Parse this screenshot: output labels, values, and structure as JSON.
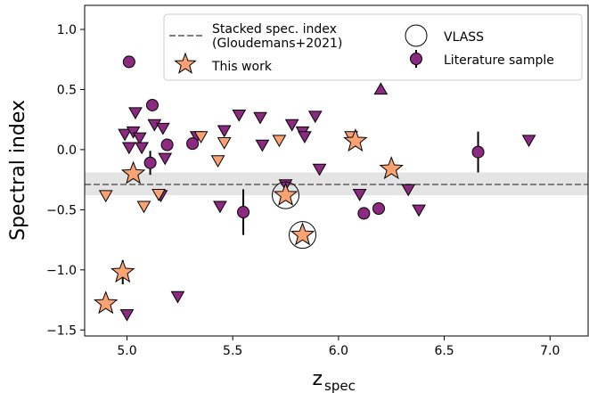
{
  "chart_data": {
    "type": "scatter",
    "xlabel_main": "z",
    "xlabel_sub": "spec",
    "ylabel": "Spectral index",
    "xlim": [
      4.8,
      7.18
    ],
    "ylim": [
      -1.55,
      1.2
    ],
    "x_ticks": [
      "5.0",
      "5.5",
      "6.0",
      "6.5",
      "7.0"
    ],
    "x_tick_values": [
      5.0,
      5.5,
      6.0,
      6.5,
      7.0
    ],
    "y_ticks": [
      "1.0",
      "0.5",
      "0.0",
      "−0.5",
      "−1.0",
      "−1.5"
    ],
    "y_tick_values": [
      1.0,
      0.5,
      0.0,
      -0.5,
      -1.0,
      -1.5
    ],
    "stacked_index": {
      "value": -0.29,
      "band": [
        -0.38,
        -0.19
      ]
    },
    "legend": {
      "stacked_label_line1": "Stacked spec. index",
      "stacked_label_line2": "(Gloudemans+2021)",
      "this_work_label": "This work",
      "vlass_label": "VLASS",
      "literature_label": "Literature sample"
    },
    "colors": {
      "this_work": "#fba273",
      "literature": "#8c2981",
      "band": "#d9d9d9",
      "stacked_line": "#7f7f7f"
    },
    "literature_points": [
      {
        "x": 5.01,
        "y": 0.73
      },
      {
        "x": 5.12,
        "y": 0.37
      },
      {
        "x": 5.11,
        "y": -0.11,
        "yerr": 0.1
      },
      {
        "x": 5.19,
        "y": 0.04
      },
      {
        "x": 5.31,
        "y": 0.05
      },
      {
        "x": 5.55,
        "y": -0.52,
        "yerr": 0.19
      },
      {
        "x": 6.12,
        "y": -0.53
      },
      {
        "x": 6.19,
        "y": -0.49
      },
      {
        "x": 6.66,
        "y": -0.02,
        "yerr": 0.17
      }
    ],
    "literature_upper_limits": [
      {
        "x": 4.99,
        "y": 0.13
      },
      {
        "x": 5.01,
        "y": 0.02
      },
      {
        "x": 5.04,
        "y": 0.31
      },
      {
        "x": 5.03,
        "y": 0.15
      },
      {
        "x": 5.06,
        "y": 0.1
      },
      {
        "x": 5.07,
        "y": 0.02
      },
      {
        "x": 5.13,
        "y": 0.21
      },
      {
        "x": 5.16,
        "y": -0.38
      },
      {
        "x": 5.17,
        "y": 0.18
      },
      {
        "x": 5.18,
        "y": -0.07
      },
      {
        "x": 5.33,
        "y": 0.11
      },
      {
        "x": 5.44,
        "y": -0.47
      },
      {
        "x": 5.46,
        "y": 0.16
      },
      {
        "x": 5.53,
        "y": 0.29
      },
      {
        "x": 5.63,
        "y": 0.27
      },
      {
        "x": 5.64,
        "y": 0.04
      },
      {
        "x": 5.75,
        "y": -0.29
      },
      {
        "x": 5.78,
        "y": 0.21
      },
      {
        "x": 5.83,
        "y": 0.15
      },
      {
        "x": 5.84,
        "y": 0.11
      },
      {
        "x": 5.89,
        "y": 0.28
      },
      {
        "x": 5.91,
        "y": -0.16
      },
      {
        "x": 6.1,
        "y": -0.37
      },
      {
        "x": 6.33,
        "y": -0.33
      },
      {
        "x": 6.38,
        "y": -0.5
      },
      {
        "x": 6.9,
        "y": 0.08
      },
      {
        "x": 5.24,
        "y": -1.22
      },
      {
        "x": 5.0,
        "y": -1.37
      }
    ],
    "literature_lower_limits": [
      {
        "x": 6.2,
        "y": 0.5
      }
    ],
    "this_work_points": [
      {
        "x": 5.03,
        "y": -0.2
      },
      {
        "x": 4.98,
        "y": -1.02,
        "yerr": 0.1
      },
      {
        "x": 4.9,
        "y": -1.28
      },
      {
        "x": 5.75,
        "y": -0.38,
        "vlass": true
      },
      {
        "x": 5.83,
        "y": -0.71,
        "vlass": true
      },
      {
        "x": 6.08,
        "y": 0.07
      },
      {
        "x": 6.25,
        "y": -0.16
      }
    ],
    "this_work_upper_limits": [
      {
        "x": 4.9,
        "y": -0.38
      },
      {
        "x": 5.08,
        "y": -0.47
      },
      {
        "x": 5.15,
        "y": -0.37
      },
      {
        "x": 5.35,
        "y": 0.11
      },
      {
        "x": 5.43,
        "y": -0.09
      },
      {
        "x": 5.46,
        "y": 0.06
      },
      {
        "x": 5.72,
        "y": 0.08
      },
      {
        "x": 6.06,
        "y": 0.11
      }
    ]
  }
}
